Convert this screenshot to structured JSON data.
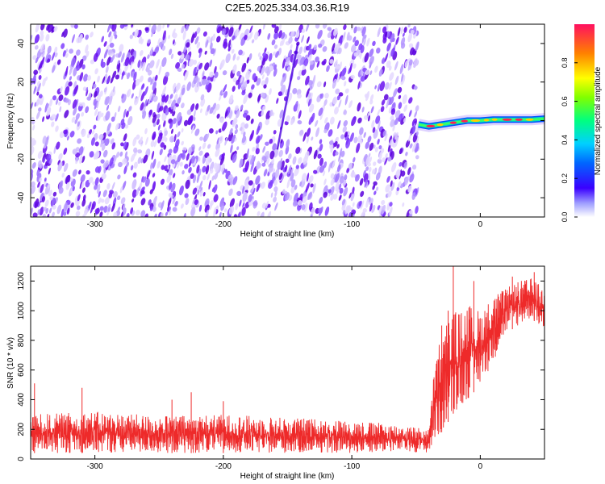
{
  "figure_title": "C2E5.2025.334.03.36.R19",
  "colorbar": {
    "label": "Normalized spectral amplitude",
    "ticks": [
      "0.0",
      "0.2",
      "0.4",
      "0.6",
      "0.8"
    ],
    "tick_values": [
      0.0,
      0.2,
      0.4,
      0.6,
      0.8
    ]
  },
  "chart_data": [
    {
      "type": "heatmap",
      "title": "",
      "xlabel": "Height of straight line (km)",
      "ylabel": "Frequency (Hz)",
      "xlim": [
        -350,
        50
      ],
      "ylim": [
        -50,
        50
      ],
      "x_ticks": [
        -300,
        -200,
        -100,
        0
      ],
      "x_tick_labels": [
        "-300",
        "-200",
        "-100",
        "0"
      ],
      "y_ticks": [
        -40,
        -20,
        0,
        20,
        40
      ],
      "y_tick_labels": [
        "-40",
        "-20",
        "0",
        "20",
        "40"
      ],
      "colorscale": "rainbow (purple=0 to red=1)",
      "regions": [
        {
          "x_range": [
            -350,
            -48
          ],
          "description": "noise, low amplitude 0.0-0.15 spread over all frequencies"
        },
        {
          "x_range": [
            -48,
            50
          ],
          "description": "signal line near 0 Hz, amplitude up to 1.0, empty elsewhere"
        }
      ],
      "signal_line": {
        "x": [
          -48,
          -40,
          -30,
          -20,
          -10,
          0,
          10,
          20,
          30,
          40,
          50
        ],
        "freq_hz": [
          -2,
          -3,
          -2,
          -1,
          0,
          0,
          0.5,
          0.5,
          0.5,
          0.5,
          1
        ]
      },
      "faint_streak": {
        "x": [
          -158,
          -142
        ],
        "freq_hz": [
          -15,
          40
        ]
      }
    },
    {
      "type": "line",
      "title": "",
      "xlabel": "Height of straight line (km)",
      "ylabel": "SNR (10 * v/v)",
      "xlim": [
        -350,
        50
      ],
      "ylim": [
        0,
        1300
      ],
      "x_ticks": [
        -300,
        -200,
        -100,
        0
      ],
      "x_tick_labels": [
        "-300",
        "-200",
        "-100",
        "0"
      ],
      "y_ticks": [
        0,
        200,
        400,
        600,
        800,
        1000,
        1200
      ],
      "y_tick_labels": [
        "0",
        "200",
        "400",
        "600",
        "800",
        "1000",
        "1200"
      ],
      "series": [
        {
          "color": "#ee2a2a",
          "envelope": {
            "x": [
              -350,
              -300,
              -250,
              -200,
              -150,
              -100,
              -60,
              -40,
              -35,
              -30,
              -25,
              -20,
              -15,
              -10,
              0,
              10,
              20,
              30,
              40,
              50
            ],
            "lower": [
              40,
              40,
              40,
              40,
              40,
              40,
              50,
              40,
              100,
              180,
              250,
              320,
              350,
              400,
              500,
              650,
              850,
              900,
              950,
              850
            ],
            "upper": [
              300,
              320,
              290,
              300,
              280,
              260,
              230,
              200,
              700,
              850,
              950,
              1000,
              1000,
              1050,
              1000,
              1100,
              1150,
              1200,
              1220,
              1150
            ]
          },
          "spikes": [
            [
              -347,
              510
            ],
            [
              -310,
              480
            ],
            [
              -240,
              400
            ],
            [
              -225,
              450
            ],
            [
              -200,
              390
            ],
            [
              -30,
              900
            ],
            [
              -25,
              1000
            ],
            [
              -21,
              1300
            ],
            [
              -5,
              1200
            ],
            [
              25,
              1230
            ],
            [
              42,
              1260
            ]
          ]
        }
      ]
    }
  ]
}
